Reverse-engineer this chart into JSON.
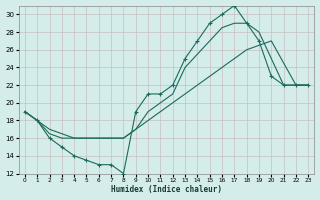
{
  "xlabel": "Humidex (Indice chaleur)",
  "background_color": "#d4ecea",
  "grid_color": "#b8d8d4",
  "line_color": "#1a6b5a",
  "xlim": [
    -0.5,
    23.5
  ],
  "ylim": [
    12,
    31
  ],
  "xticks": [
    0,
    1,
    2,
    3,
    4,
    5,
    6,
    7,
    8,
    9,
    10,
    11,
    12,
    13,
    14,
    15,
    16,
    17,
    18,
    19,
    20,
    21,
    22,
    23
  ],
  "yticks": [
    12,
    14,
    16,
    18,
    20,
    22,
    24,
    26,
    28,
    30
  ],
  "line1_x": [
    0,
    1,
    2,
    3,
    4,
    5,
    6,
    7,
    8,
    9,
    10,
    11,
    12,
    13,
    14,
    15,
    16,
    17,
    18,
    19,
    20,
    21,
    22,
    23
  ],
  "line1_y": [
    19,
    18,
    16,
    15,
    14,
    13.5,
    13,
    13,
    12,
    19,
    21,
    21,
    22,
    25,
    27,
    29,
    30,
    31,
    29,
    27,
    23,
    22,
    22,
    22
  ],
  "line2_x": [
    0,
    1,
    2,
    3,
    4,
    5,
    6,
    7,
    8,
    9,
    10,
    11,
    12,
    13,
    14,
    15,
    16,
    17,
    18,
    19,
    20,
    21,
    22,
    23
  ],
  "line2_y": [
    19,
    18,
    16.5,
    16,
    16,
    16,
    16,
    16,
    16,
    17,
    19,
    20,
    21,
    24,
    25.5,
    27,
    28.5,
    29,
    29,
    28,
    25,
    22,
    22,
    22
  ],
  "line3_x": [
    0,
    2,
    4,
    6,
    8,
    10,
    12,
    14,
    16,
    18,
    20,
    22,
    23
  ],
  "line3_y": [
    19,
    17,
    16,
    16,
    16,
    18,
    20,
    22,
    24,
    26,
    27,
    22,
    22
  ]
}
